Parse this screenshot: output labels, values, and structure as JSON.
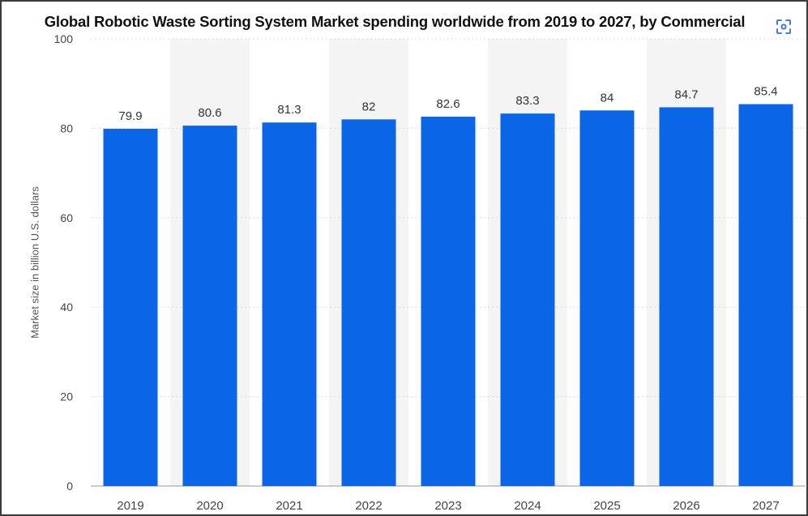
{
  "page": {
    "title": "Global Robotic Waste Sorting System Market spending worldwide from 2019 to 2027, by Commercial",
    "expand_icon": "expand-icon",
    "accent_color": "#2b6cd9"
  },
  "chart_data": {
    "type": "bar",
    "title": "Global Robotic Waste Sorting System Market spending worldwide from 2019 to 2027, by Commercial",
    "xlabel": "",
    "ylabel": "Market size in billion U.S. dollars",
    "categories": [
      "2019",
      "2020",
      "2021",
      "2022",
      "2023",
      "2024",
      "2025",
      "2026",
      "2027"
    ],
    "values": [
      79.9,
      80.6,
      81.3,
      82,
      82.6,
      83.3,
      84,
      84.7,
      85.4
    ],
    "data_labels": [
      "79.9",
      "80.6",
      "81.3",
      "82",
      "82.6",
      "83.3",
      "84",
      "84.7",
      "85.4"
    ],
    "ylim": [
      0,
      100
    ],
    "yticks": [
      0,
      20,
      40,
      60,
      80,
      100
    ],
    "grid": true,
    "bar_color": "#0a66e6",
    "band_color": "#f4f4f4"
  }
}
